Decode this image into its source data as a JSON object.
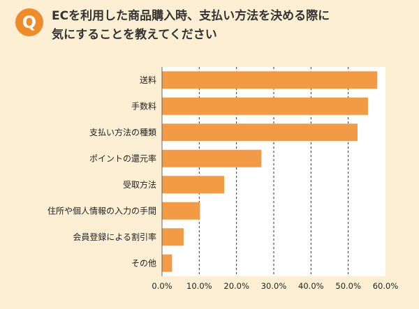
{
  "question": {
    "badge": "Q",
    "title_line1": "ECを利用した商品購入時、支払い方法を決める際に",
    "title_line2": "気にすることを教えてください"
  },
  "colors": {
    "background": "#fcefd3",
    "bar": "#f39a45",
    "badge": "#ef8b28",
    "plot_area": "#ffffff",
    "grid": "#333333"
  },
  "chart_data": {
    "type": "bar",
    "orientation": "horizontal",
    "categories": [
      "送料",
      "手数料",
      "支払い方法の種類",
      "ポイントの還元率",
      "受取方法",
      "住所や個人情報の入力の手間",
      "会員登録による割引率",
      "その他"
    ],
    "values": [
      57.8,
      55.3,
      52.5,
      26.7,
      16.7,
      10.2,
      5.8,
      2.7
    ],
    "xlim": [
      0,
      60
    ],
    "xticks": [
      "0.0%",
      "10.0%",
      "20.0%",
      "30.0%",
      "40.0%",
      "50.0%",
      "60.0%"
    ],
    "grid": true,
    "grid_style": "dashed-vertical"
  }
}
